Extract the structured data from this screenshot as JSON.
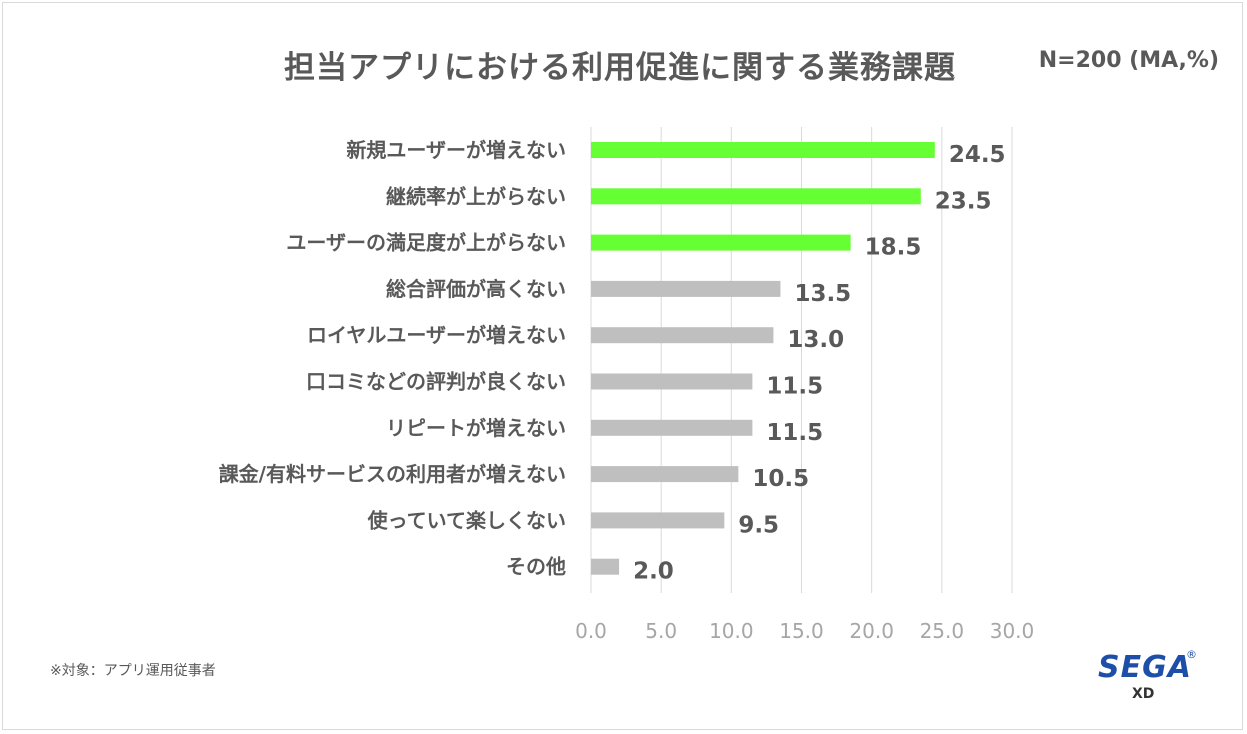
{
  "header": {
    "title": "担当アプリにおける利用促進に関する業務課題",
    "sample": "N=200 (MA,%)"
  },
  "footer": {
    "note": "※対象：アプリ運用従事者"
  },
  "logo": {
    "word": "SEGA",
    "mark": "®",
    "sub": "XD"
  },
  "colors": {
    "highlight": "#66ff33",
    "default_bar": "#bfbfbf",
    "label_text": "#595959",
    "grid": "#d9d9d9",
    "brand": "#1e4fa8"
  },
  "chart_data": {
    "type": "bar",
    "orientation": "horizontal",
    "categories": [
      "新規ユーザーが増えない",
      "継続率が上がらない",
      "ユーザーの満足度が上がらない",
      "総合評価が高くない",
      "ロイヤルユーザーが増えない",
      "口コミなどの評判が良くない",
      "リピートが増えない",
      "課金/有料サービスの利用者が増えない",
      "使っていて楽しくない",
      "その他"
    ],
    "values": [
      24.5,
      23.5,
      18.5,
      13.5,
      13.0,
      11.5,
      11.5,
      10.5,
      9.5,
      2.0
    ],
    "value_labels": [
      "24.5",
      "23.5",
      "18.5",
      "13.5",
      "13.0",
      "11.5",
      "11.5",
      "10.5",
      "9.5",
      "2.0"
    ],
    "highlighted": [
      true,
      true,
      true,
      false,
      false,
      false,
      false,
      false,
      false,
      false
    ],
    "xlim": [
      0,
      30
    ],
    "ticks": [
      "0.0",
      "5.0",
      "10.0",
      "15.0",
      "20.0",
      "25.0",
      "30.0"
    ],
    "grid": true,
    "legend": "none"
  }
}
